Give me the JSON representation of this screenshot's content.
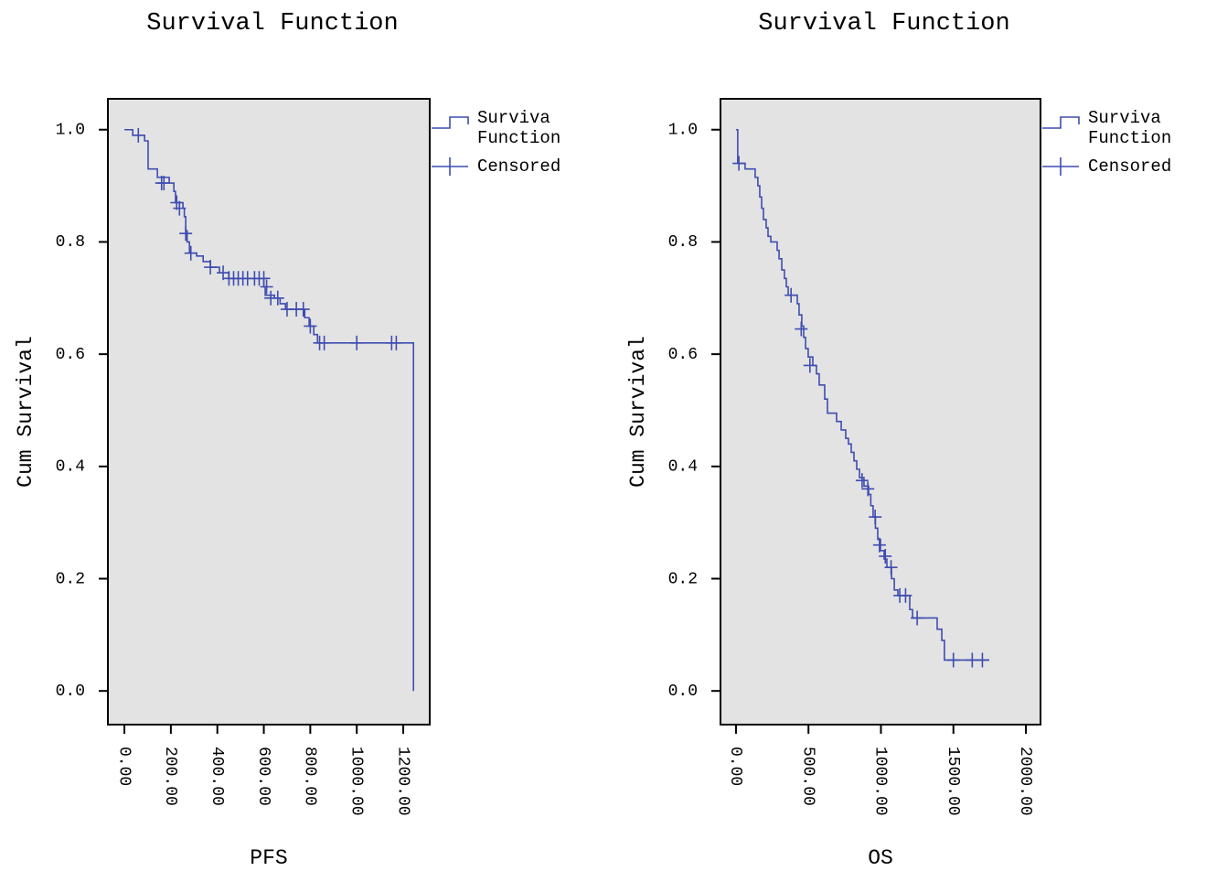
{
  "chart_data": [
    {
      "type": "km",
      "title": "Survival Function",
      "xlabel": "PFS",
      "ylabel": "Cum Survival",
      "xlim": [
        -71,
        1314
      ],
      "ylim": [
        -0.06,
        1.055
      ],
      "xticks": [
        {
          "value": 0,
          "label": "0.00"
        },
        {
          "value": 200,
          "label": "200.00"
        },
        {
          "value": 400,
          "label": "400.00"
        },
        {
          "value": 600,
          "label": "600.00"
        },
        {
          "value": 800,
          "label": "800.00"
        },
        {
          "value": 1000,
          "label": "1000.00"
        },
        {
          "value": 1200,
          "label": "1200.00"
        }
      ],
      "yticks": [
        {
          "value": 0,
          "label": "0.0"
        },
        0.2,
        0.4,
        0.6,
        0.8,
        {
          "value": 1,
          "label": "1.0"
        }
      ],
      "background": "#e3e3e3",
      "series": [
        {
          "name": "Surviva Function",
          "color": "#3f4db0",
          "style": "step",
          "x": [
            0,
            36,
            87,
            102,
            142,
            193,
            213,
            220,
            252,
            258,
            264,
            270,
            280,
            311,
            339,
            370,
            409,
            449,
            600,
            606,
            646,
            670,
            693,
            776,
            795,
            815,
            831,
            1244
          ],
          "values": [
            1,
            0.99,
            0.98,
            0.93,
            0.915,
            0.905,
            0.89,
            0.87,
            0.86,
            0.845,
            0.82,
            0.8,
            0.78,
            0.775,
            0.765,
            0.755,
            0.745,
            0.735,
            0.72,
            0.705,
            0.7,
            0.69,
            0.68,
            0.665,
            0.65,
            0.635,
            0.62,
            0
          ]
        },
        {
          "name": "Censored",
          "color": "#3f4db0",
          "style": "plus",
          "x": [
            60,
            160,
            170,
            225,
            237,
            264,
            286,
            370,
            425,
            450,
            470,
            490,
            510,
            530,
            560,
            580,
            600,
            612,
            630,
            660,
            700,
            740,
            770,
            800,
            840,
            860,
            1000,
            1150,
            1170
          ],
          "values": [
            0.99,
            0.905,
            0.905,
            0.87,
            0.86,
            0.815,
            0.78,
            0.755,
            0.745,
            0.735,
            0.735,
            0.735,
            0.735,
            0.735,
            0.735,
            0.735,
            0.735,
            0.72,
            0.7,
            0.7,
            0.68,
            0.68,
            0.68,
            0.65,
            0.62,
            0.62,
            0.62,
            0.62,
            0.62
          ]
        }
      ]
    },
    {
      "type": "km",
      "title": "Survival Function",
      "xlabel": "OS",
      "ylabel": "Cum Survival",
      "xlim": [
        -107,
        2101
      ],
      "ylim": [
        -0.06,
        1.055
      ],
      "xticks": [
        {
          "value": 0,
          "label": "0.00"
        },
        {
          "value": 500,
          "label": "500.00"
        },
        {
          "value": 1000,
          "label": "1000.00"
        },
        {
          "value": 1500,
          "label": "1500.00"
        },
        {
          "value": 2000,
          "label": "2000.00"
        }
      ],
      "yticks": [
        {
          "value": 0,
          "label": "0.0"
        },
        0.2,
        0.4,
        0.6,
        0.8,
        {
          "value": 1,
          "label": "1.0"
        }
      ],
      "background": "#e3e3e3",
      "series": [
        {
          "name": "Surviva Function",
          "color": "#3f4db0",
          "style": "step",
          "x": [
            0,
            12,
            63,
            132,
            151,
            164,
            177,
            189,
            208,
            221,
            240,
            284,
            297,
            316,
            334,
            347,
            360,
            423,
            435,
            454,
            467,
            480,
            498,
            530,
            555,
            574,
            612,
            631,
            694,
            726,
            757,
            776,
            795,
            814,
            833,
            852,
            883,
            915,
            930,
            946,
            962,
            978,
            997,
            1022,
            1041,
            1073,
            1092,
            1117,
            1199,
            1218,
            1388,
            1420,
            1438,
            1748
          ],
          "values": [
            1,
            0.94,
            0.93,
            0.915,
            0.9,
            0.88,
            0.86,
            0.84,
            0.825,
            0.81,
            0.8,
            0.785,
            0.77,
            0.75,
            0.735,
            0.72,
            0.705,
            0.69,
            0.67,
            0.65,
            0.63,
            0.61,
            0.595,
            0.58,
            0.565,
            0.545,
            0.52,
            0.495,
            0.48,
            0.465,
            0.45,
            0.44,
            0.425,
            0.41,
            0.395,
            0.38,
            0.365,
            0.35,
            0.33,
            0.31,
            0.29,
            0.27,
            0.25,
            0.235,
            0.22,
            0.2,
            0.18,
            0.17,
            0.145,
            0.13,
            0.11,
            0.09,
            0.055,
            0.055
          ]
        },
        {
          "name": "Censored",
          "color": "#3f4db0",
          "style": "plus",
          "x": [
            20,
            380,
            450,
            510,
            870,
            910,
            960,
            990,
            1030,
            1070,
            1130,
            1170,
            1250,
            1500,
            1630,
            1700
          ],
          "values": [
            0.94,
            0.705,
            0.645,
            0.58,
            0.375,
            0.36,
            0.31,
            0.26,
            0.24,
            0.22,
            0.17,
            0.17,
            0.13,
            0.055,
            0.055,
            0.055
          ]
        }
      ]
    }
  ]
}
